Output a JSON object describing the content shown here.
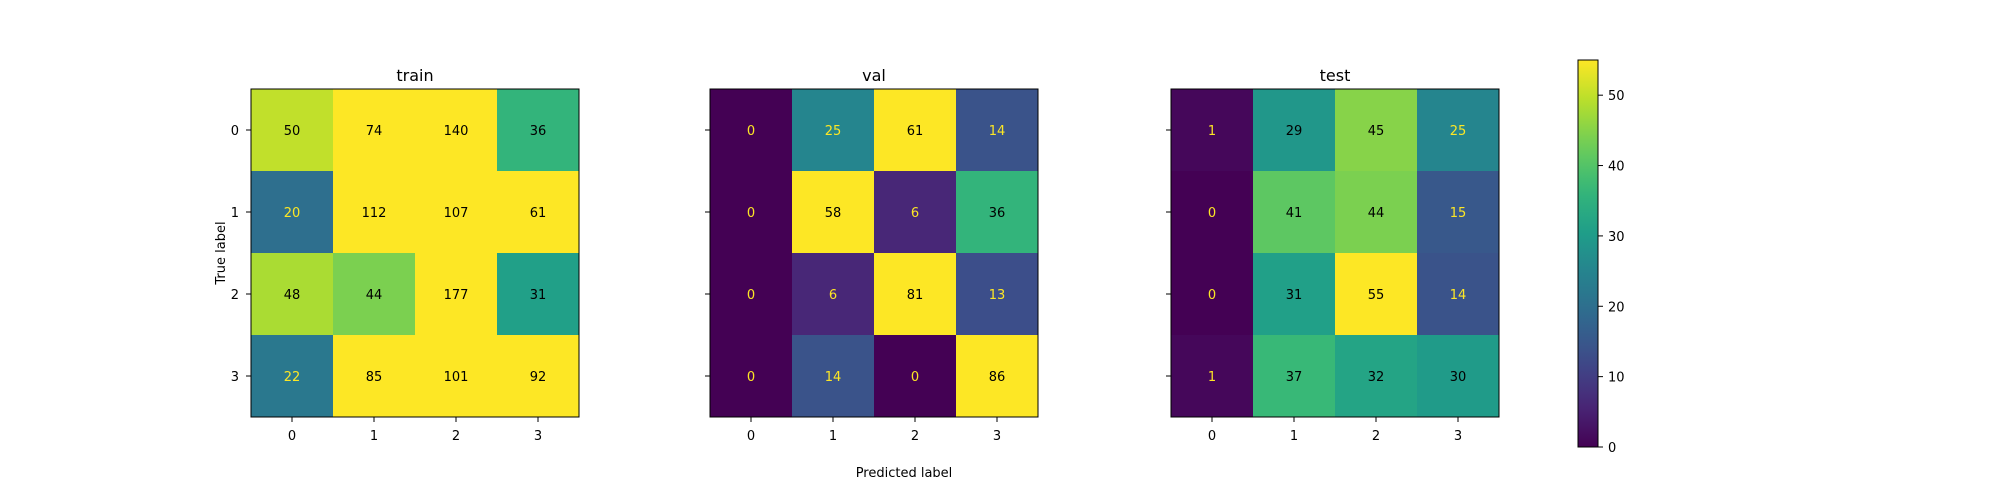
{
  "chart_data": [
    {
      "type": "heatmap",
      "title": "train",
      "xlabel": "",
      "ylabel": "True label",
      "x_categories": [
        "0",
        "1",
        "2",
        "3"
      ],
      "y_categories": [
        "0",
        "1",
        "2",
        "3"
      ],
      "values": [
        [
          50,
          74,
          140,
          36
        ],
        [
          20,
          112,
          107,
          61
        ],
        [
          48,
          44,
          177,
          31
        ],
        [
          22,
          85,
          101,
          92
        ]
      ]
    },
    {
      "type": "heatmap",
      "title": "val",
      "xlabel": "Predicted label",
      "ylabel": "",
      "x_categories": [
        "0",
        "1",
        "2",
        "3"
      ],
      "y_categories": [
        "0",
        "1",
        "2",
        "3"
      ],
      "values": [
        [
          0,
          25,
          61,
          14
        ],
        [
          0,
          58,
          6,
          36
        ],
        [
          0,
          6,
          81,
          13
        ],
        [
          0,
          14,
          0,
          86
        ]
      ]
    },
    {
      "type": "heatmap",
      "title": "test",
      "xlabel": "",
      "ylabel": "",
      "x_categories": [
        "0",
        "1",
        "2",
        "3"
      ],
      "y_categories": [
        "0",
        "1",
        "2",
        "3"
      ],
      "values": [
        [
          1,
          29,
          45,
          25
        ],
        [
          0,
          41,
          44,
          15
        ],
        [
          0,
          31,
          55,
          14
        ],
        [
          1,
          37,
          32,
          30
        ]
      ]
    }
  ],
  "colorbar": {
    "colormap": "viridis",
    "range": [
      0,
      55
    ],
    "ticks": [
      0,
      10,
      20,
      30,
      40,
      50
    ]
  },
  "text_colors": {
    "light": "#fde725",
    "dark": "#000000"
  }
}
